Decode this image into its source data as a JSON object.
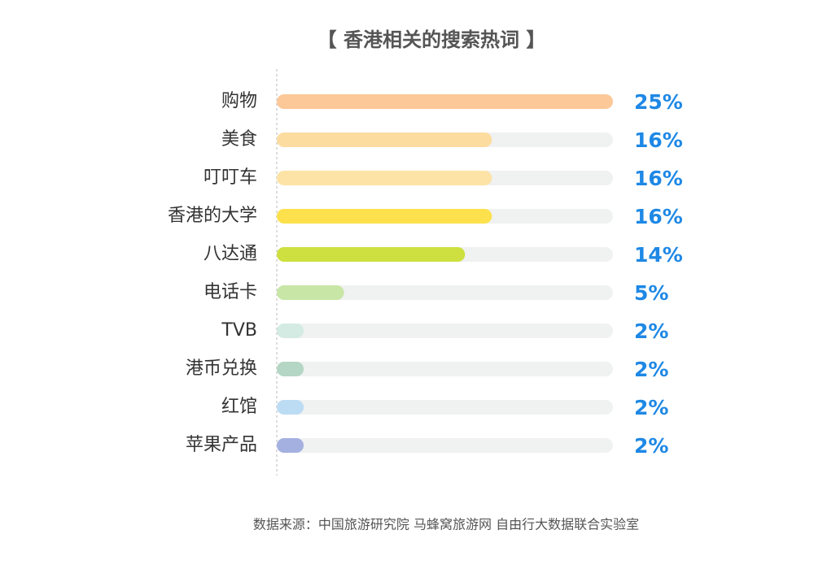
{
  "chart_data": {
    "type": "bar",
    "orientation": "horizontal",
    "title": "【 香港相关的搜索热词 】",
    "categories": [
      "购物",
      "美食",
      "叮叮车",
      "香港的大学",
      "八达通",
      "电话卡",
      "TVB",
      "港币兑换",
      "红馆",
      "苹果产品"
    ],
    "values": [
      25,
      16,
      16,
      16,
      14,
      5,
      2,
      2,
      2,
      2
    ],
    "value_labels": [
      "25%",
      "16%",
      "16%",
      "16%",
      "14%",
      "5%",
      "2%",
      "2%",
      "2%",
      "2%"
    ],
    "colors": [
      "#fcc898",
      "#fddca0",
      "#fde3a6",
      "#fde14c",
      "#cde03f",
      "#c8e6a6",
      "#d4ebe4",
      "#b4d6c4",
      "#bcdcf4",
      "#a4b1e0"
    ],
    "xlim": [
      0,
      25
    ],
    "source": "数据来源：中国旅游研究院 马蜂窝旅游网 自由行大数据联合实验室"
  }
}
